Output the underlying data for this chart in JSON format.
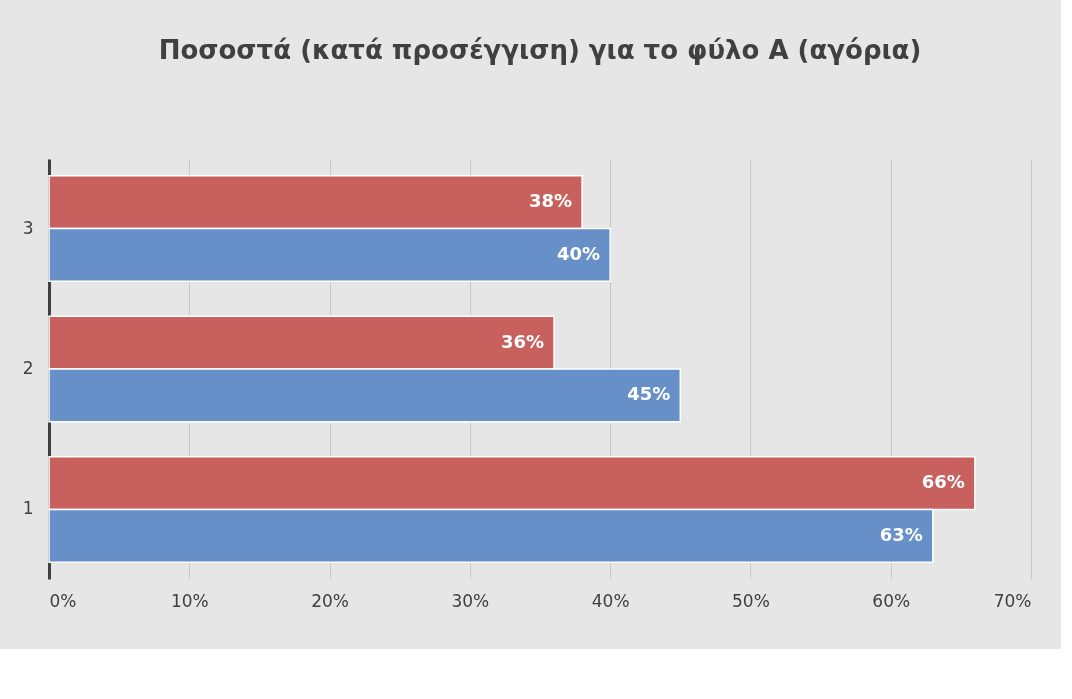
{
  "chart_data": {
    "type": "bar",
    "orientation": "horizontal",
    "title": "Ποσοστά (κατά προσέγγιση) για το φύλο Α (αγόρια)",
    "categories": [
      "3",
      "2",
      "1"
    ],
    "series": [
      {
        "color": "#c8615e",
        "values": [
          38,
          36,
          66
        ],
        "value_labels": [
          "38%",
          "36%",
          "66%"
        ]
      },
      {
        "color": "#6690c7",
        "values": [
          40,
          45,
          63
        ],
        "value_labels": [
          "40%",
          "45%",
          "63%"
        ]
      }
    ],
    "xlim": [
      0,
      70
    ],
    "xticks": [
      {
        "value": 0,
        "label": "0%"
      },
      {
        "value": 10,
        "label": "10%"
      },
      {
        "value": 20,
        "label": "20%"
      },
      {
        "value": 30,
        "label": "30%"
      },
      {
        "value": 40,
        "label": "40%"
      },
      {
        "value": 50,
        "label": "50%"
      },
      {
        "value": 60,
        "label": "60%"
      },
      {
        "value": 70,
        "label": "70%"
      }
    ],
    "grid": "x",
    "legend": false
  }
}
